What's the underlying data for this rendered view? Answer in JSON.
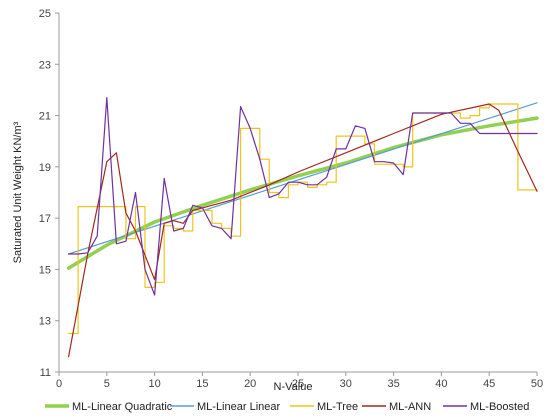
{
  "chart_data": {
    "type": "line",
    "xlabel": "N-Value",
    "ylabel": "Saturated Unit Weight KN/m³",
    "xlim": [
      0,
      50
    ],
    "ylim": [
      11,
      25
    ],
    "xticks": [
      0,
      5,
      10,
      15,
      20,
      25,
      30,
      35,
      40,
      45,
      50
    ],
    "yticks": [
      11,
      13,
      15,
      17,
      19,
      21,
      23,
      25
    ],
    "grid": false,
    "legend_position": "bottom",
    "series": [
      {
        "name": "ML-Linear Quadratic",
        "color": "#92D050",
        "x": [
          1,
          5,
          10,
          15,
          20,
          25,
          30,
          35,
          40,
          45,
          50
        ],
        "y": [
          15.05,
          15.95,
          16.85,
          17.5,
          18.1,
          18.65,
          19.15,
          19.75,
          20.25,
          20.6,
          20.9
        ]
      },
      {
        "name": "ML-Linear Linear",
        "color": "#5B9BD5",
        "x": [
          1,
          50
        ],
        "y": [
          15.6,
          21.5
        ]
      },
      {
        "name": "ML-Tree",
        "color": "#F0C419",
        "x": [
          1,
          2,
          2,
          3,
          3,
          7,
          7,
          8,
          8,
          9,
          9,
          10,
          10,
          11,
          11,
          12,
          12,
          13,
          13,
          14,
          14,
          15,
          15,
          16,
          16,
          17,
          17,
          18,
          18,
          19,
          19,
          20,
          20,
          21,
          21,
          22,
          22,
          23,
          23,
          24,
          24,
          25,
          25,
          26,
          26,
          27,
          27,
          28,
          28,
          29,
          29,
          30,
          30,
          31,
          31,
          32,
          32,
          33,
          33,
          34,
          34,
          35,
          35,
          36,
          36,
          37,
          37,
          38,
          38,
          39,
          39,
          40,
          40,
          41,
          41,
          42,
          42,
          43,
          43,
          44,
          44,
          45,
          45,
          46,
          46,
          47,
          47,
          48,
          48,
          49,
          49,
          50
        ],
        "y": [
          12.5,
          12.5,
          17.45,
          17.45,
          17.45,
          17.45,
          16.2,
          16.2,
          17.45,
          17.45,
          14.3,
          14.3,
          14.5,
          14.5,
          16.7,
          16.7,
          16.6,
          16.6,
          16.5,
          16.5,
          17.3,
          17.3,
          17.3,
          17.3,
          16.8,
          16.8,
          16.6,
          16.6,
          16.3,
          16.3,
          20.5,
          20.5,
          20.5,
          20.5,
          19.3,
          19.3,
          18.0,
          18.0,
          17.8,
          17.8,
          18.3,
          18.3,
          18.4,
          18.4,
          18.2,
          18.2,
          18.3,
          18.3,
          18.4,
          18.4,
          20.2,
          20.2,
          20.2,
          20.2,
          20.2,
          20.2,
          19.9,
          19.9,
          19.1,
          19.1,
          19.1,
          19.1,
          19.1,
          19.1,
          19.0,
          19.0,
          21.1,
          21.1,
          21.1,
          21.1,
          21.1,
          21.1,
          21.1,
          21.1,
          21.1,
          21.1,
          20.9,
          20.9,
          21.0,
          21.0,
          21.3,
          21.3,
          21.45,
          21.45,
          21.45,
          21.45,
          21.45,
          21.45,
          18.1,
          18.1,
          18.1,
          18.1
        ]
      },
      {
        "name": "ML-ANN",
        "color": "#A0291E",
        "x": [
          1,
          3,
          5,
          6,
          7,
          8,
          10,
          11,
          12,
          13,
          14,
          15,
          16,
          17,
          18,
          19,
          20,
          21,
          22,
          25,
          30,
          35,
          40,
          45,
          46,
          48,
          50
        ],
        "y": [
          11.6,
          15.6,
          19.2,
          19.55,
          17.2,
          16.5,
          14.6,
          16.8,
          16.9,
          16.8,
          17.3,
          17.4,
          17.5,
          17.6,
          17.7,
          17.85,
          18.0,
          18.15,
          18.3,
          18.8,
          19.55,
          20.3,
          21.05,
          21.45,
          21.2,
          19.6,
          18.05
        ]
      },
      {
        "name": "ML-Boosted",
        "color": "#7030A0",
        "x": [
          1,
          2,
          3,
          4,
          5,
          6,
          7,
          8,
          9,
          10,
          11,
          12,
          13,
          14,
          15,
          16,
          17,
          18,
          19,
          20,
          21,
          22,
          23,
          24,
          25,
          26,
          27,
          28,
          29,
          30,
          31,
          32,
          33,
          34,
          35,
          36,
          37,
          38,
          39,
          40,
          41,
          42,
          43,
          44,
          45,
          46,
          47,
          48,
          49,
          50
        ],
        "y": [
          15.6,
          15.6,
          15.65,
          16.3,
          21.7,
          16.0,
          16.1,
          18.0,
          15.0,
          14.0,
          18.55,
          16.5,
          16.6,
          17.5,
          17.4,
          16.7,
          16.6,
          16.2,
          21.35,
          20.5,
          19.3,
          17.8,
          17.95,
          18.4,
          18.4,
          18.3,
          18.3,
          18.6,
          19.7,
          19.7,
          20.6,
          20.5,
          19.2,
          19.2,
          19.15,
          18.7,
          21.1,
          21.1,
          21.1,
          21.1,
          21.1,
          20.7,
          20.7,
          20.3,
          20.3,
          20.3,
          20.3,
          20.3,
          20.3,
          20.3
        ]
      }
    ]
  }
}
